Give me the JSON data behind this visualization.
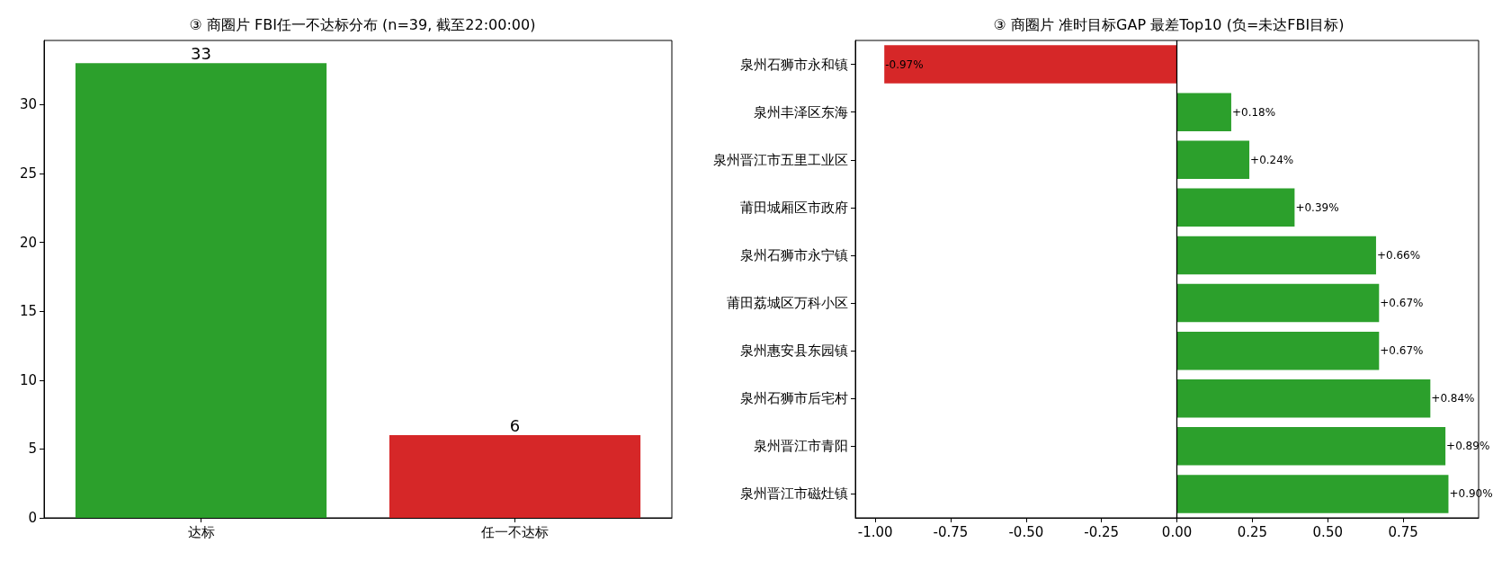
{
  "chart_data": [
    {
      "type": "bar",
      "title": "③ 商圈片 FBI任一不达标分布 (n=39, 截至22:00:00)",
      "categories": [
        "达标",
        "任一不达标"
      ],
      "values": [
        33,
        6
      ],
      "colors": [
        "#2ca02c",
        "#d62728"
      ],
      "ylim": [
        0,
        34.65
      ],
      "yticks": [
        0,
        5,
        10,
        15,
        20,
        25,
        30
      ],
      "data_labels": true,
      "grid": false
    },
    {
      "type": "bar",
      "orientation": "horizontal",
      "title": "③ 商圈片 准时目标GAP 最差Top10 (负=未达FBI目标)",
      "categories": [
        "泉州石狮市永和镇",
        "泉州丰泽区东海",
        "泉州晋江市五里工业区",
        "莆田城厢区市政府",
        "泉州石狮市永宁镇",
        "莆田荔城区万科小区",
        "泉州惠安县东园镇",
        "泉州石狮市后宅村",
        "泉州晋江市青阳",
        "泉州晋江市磁灶镇"
      ],
      "values": [
        -0.97,
        0.18,
        0.24,
        0.39,
        0.66,
        0.67,
        0.67,
        0.84,
        0.89,
        0.9
      ],
      "colors": [
        "#d62728",
        "#2ca02c",
        "#2ca02c",
        "#2ca02c",
        "#2ca02c",
        "#2ca02c",
        "#2ca02c",
        "#2ca02c",
        "#2ca02c",
        "#2ca02c"
      ],
      "value_labels": [
        "-0.97%",
        "+0.18%",
        "+0.24%",
        "+0.39%",
        "+0.66%",
        "+0.67%",
        "+0.67%",
        "+0.84%",
        "+0.89%",
        "+0.90%"
      ],
      "xlim": [
        -1.066,
        1.0
      ],
      "xticks": [
        {
          "value": -1,
          "label": "-1.00"
        },
        {
          "value": -0.75,
          "label": "-0.75"
        },
        {
          "value": -0.5,
          "label": "-0.50"
        },
        {
          "value": -0.25,
          "label": "-0.25"
        },
        {
          "value": 0,
          "label": "0.00"
        },
        {
          "value": 0.25,
          "label": "0.25"
        },
        {
          "value": 0.5,
          "label": "0.50"
        },
        {
          "value": 0.75,
          "label": "0.75"
        }
      ],
      "ref_lines": [
        {
          "axis": "x",
          "value": 0,
          "label": null,
          "color": "#000000"
        }
      ],
      "grid": false
    }
  ]
}
